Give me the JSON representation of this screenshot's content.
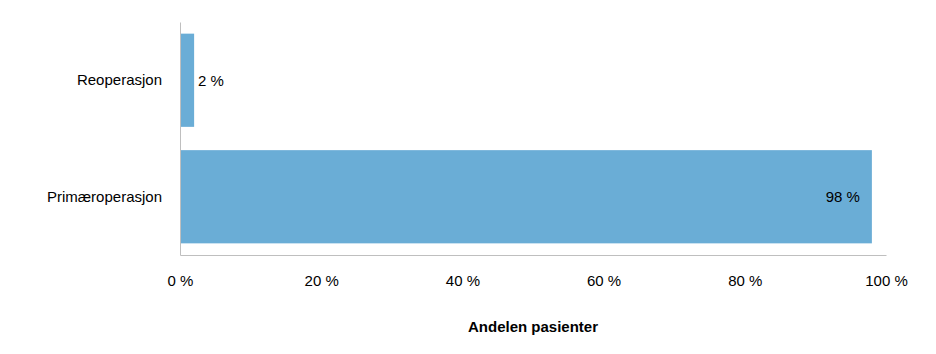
{
  "chart_data": {
    "type": "bar",
    "orientation": "horizontal",
    "categories": [
      "Reoperasjon",
      "Primæroperasjon"
    ],
    "values": [
      2,
      98
    ],
    "value_labels": [
      "2 %",
      "98 %"
    ],
    "data_labels": true,
    "color": "#6aadd6",
    "x_label": "Andelen pasienter",
    "xlim": [
      0,
      100
    ],
    "xticks": [
      {
        "value": 0,
        "label": "0 %"
      },
      {
        "value": 20,
        "label": "20 %"
      },
      {
        "value": 40,
        "label": "40 %"
      },
      {
        "value": 60,
        "label": "60 %"
      },
      {
        "value": 80,
        "label": "80 %"
      },
      {
        "value": 100,
        "label": "100 %"
      }
    ],
    "grid": false
  }
}
